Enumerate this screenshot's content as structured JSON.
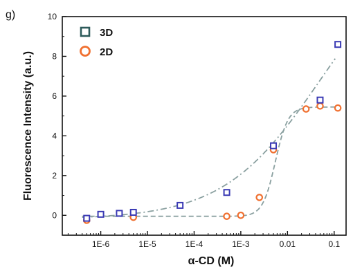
{
  "panel_label": "g)",
  "chart_data": {
    "type": "scatter",
    "title": "",
    "xlabel": "α-CD (M)",
    "ylabel": "Fluorescence Intensity (a.u.)",
    "xscale": "log",
    "xlim": [
      1.5e-07,
      0.18
    ],
    "ylim": [
      -1,
      10
    ],
    "yticks": [
      0,
      2,
      4,
      6,
      8,
      10
    ],
    "ytick_labels": [
      "0",
      "2",
      "4",
      "6",
      "8",
      "10"
    ],
    "xticks": [
      1e-06,
      1e-05,
      0.0001,
      0.001,
      0.01,
      0.1
    ],
    "xtick_labels": [
      "1E-6",
      "1E-5",
      "1E-4",
      "1E-3",
      "0.01",
      "0.1"
    ],
    "grid": false,
    "legend_position": "top-left",
    "series": [
      {
        "name": "3D",
        "marker": "square",
        "color": "#3a3ab4",
        "fit_style": "dash-dot",
        "x": [
          5e-07,
          1e-06,
          2.5e-06,
          5e-06,
          5e-05,
          0.0005,
          0.005,
          0.05,
          0.12
        ],
        "y": [
          -0.15,
          0.05,
          0.1,
          0.15,
          0.5,
          1.15,
          3.5,
          5.8,
          8.6
        ]
      },
      {
        "name": "2D",
        "marker": "circle",
        "color": "#f07030",
        "fit_style": "dashed",
        "x": [
          5e-07,
          5e-06,
          0.0005,
          0.001,
          0.0025,
          0.005,
          0.025,
          0.05,
          0.12
        ],
        "y": [
          -0.25,
          -0.1,
          -0.05,
          0.0,
          0.9,
          3.3,
          5.35,
          5.5,
          5.4
        ]
      }
    ],
    "fit_color": "#8aa0a0"
  }
}
